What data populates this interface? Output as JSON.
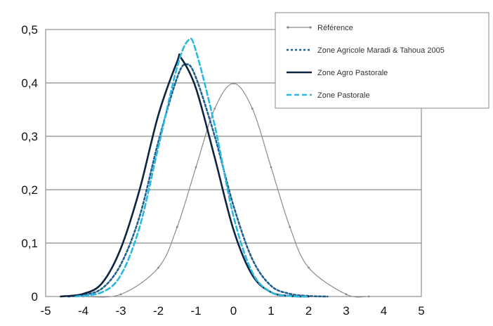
{
  "chart_data": {
    "type": "line",
    "title": "",
    "xlabel": "",
    "ylabel": "",
    "xlim": [
      -5,
      5
    ],
    "ylim": [
      0,
      0.5
    ],
    "x_ticks": [
      -5,
      -4,
      -3,
      -2,
      -1,
      0,
      1,
      2,
      3,
      4,
      5
    ],
    "x_tick_labels": [
      "-5",
      "-4",
      "-3",
      "-2",
      "-1",
      "0",
      "1",
      "2",
      "3",
      "4",
      "5"
    ],
    "y_ticks": [
      0,
      0.1,
      0.2,
      0.3,
      0.4,
      0.5
    ],
    "y_tick_labels": [
      "0",
      "0,1",
      "0,2",
      "0,3",
      "0,4",
      "0,5"
    ],
    "grid": "horizontal",
    "legend_position": "top-right",
    "series": [
      {
        "name": "Référence",
        "color": "#8a8a8a",
        "style": "solid-with-markers",
        "x": [
          -4,
          -3,
          -2,
          -1.5,
          -1,
          -0.5,
          0,
          0.5,
          1,
          1.5,
          2,
          3,
          3.6
        ],
        "y": [
          0.0,
          0.004,
          0.054,
          0.13,
          0.242,
          0.352,
          0.399,
          0.352,
          0.242,
          0.13,
          0.054,
          0.004,
          0.0
        ]
      },
      {
        "name": "Zone Agricole Maradi & Tahoua 2005",
        "color": "#1f5f8f",
        "style": "dotted",
        "x": [
          -4.4,
          -4,
          -3.5,
          -3,
          -2.5,
          -2,
          -1.5,
          -1.25,
          -1,
          -0.5,
          0,
          0.5,
          1,
          1.5,
          2,
          2.5
        ],
        "y": [
          0.0,
          0.003,
          0.015,
          0.06,
          0.15,
          0.29,
          0.41,
          0.435,
          0.41,
          0.3,
          0.17,
          0.07,
          0.02,
          0.005,
          0.001,
          0.0
        ]
      },
      {
        "name": "Zone Agro Pastorale",
        "color": "#0f2440",
        "style": "solid",
        "x": [
          -4.6,
          -4,
          -3.5,
          -3,
          -2.5,
          -2,
          -1.5,
          -1.4,
          -1,
          -0.5,
          0,
          0.5,
          1,
          1.5,
          2
        ],
        "y": [
          0.0,
          0.005,
          0.025,
          0.09,
          0.2,
          0.34,
          0.44,
          0.447,
          0.39,
          0.26,
          0.125,
          0.04,
          0.008,
          0.001,
          0.0
        ]
      },
      {
        "name": "Zone Pastorale",
        "color": "#2bb8e0",
        "style": "dashed",
        "x": [
          -4.2,
          -3.5,
          -3,
          -2.5,
          -2,
          -1.5,
          -1.2,
          -1,
          -0.5,
          0,
          0.5,
          1,
          1.5,
          2
        ],
        "y": [
          0.0,
          0.008,
          0.04,
          0.13,
          0.28,
          0.43,
          0.48,
          0.46,
          0.32,
          0.15,
          0.045,
          0.008,
          0.001,
          0.0
        ]
      }
    ]
  }
}
